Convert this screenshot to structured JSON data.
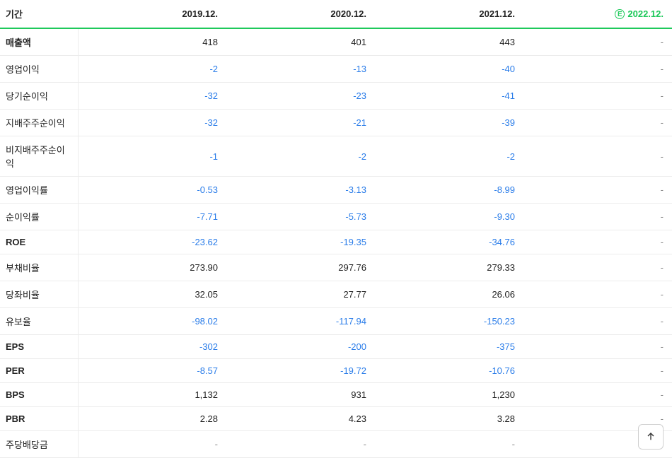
{
  "header": {
    "period_label": "기간",
    "periods": [
      "2019.12.",
      "2020.12.",
      "2021.12.",
      "2022.12."
    ],
    "estimate_index": 3,
    "estimate_badge": "E",
    "accent_color": "#1ec95b",
    "negative_color": "#2b7de9",
    "text_color": "#222222",
    "border_color": "#ececec"
  },
  "rows": [
    {
      "label": "매출액",
      "bold": true,
      "vals": [
        "418",
        "401",
        "443",
        "-"
      ],
      "neg": [
        false,
        false,
        false,
        false
      ]
    },
    {
      "label": "영업이익",
      "bold": false,
      "vals": [
        "-2",
        "-13",
        "-40",
        "-"
      ],
      "neg": [
        true,
        true,
        true,
        false
      ]
    },
    {
      "label": "당기순이익",
      "bold": false,
      "vals": [
        "-32",
        "-23",
        "-41",
        "-"
      ],
      "neg": [
        true,
        true,
        true,
        false
      ]
    },
    {
      "label": "지배주주순이익",
      "bold": false,
      "vals": [
        "-32",
        "-21",
        "-39",
        "-"
      ],
      "neg": [
        true,
        true,
        true,
        false
      ]
    },
    {
      "label": "비지배주주순이익",
      "bold": false,
      "vals": [
        "-1",
        "-2",
        "-2",
        "-"
      ],
      "neg": [
        true,
        true,
        true,
        false
      ]
    },
    {
      "label": "영업이익률",
      "bold": false,
      "vals": [
        "-0.53",
        "-3.13",
        "-8.99",
        "-"
      ],
      "neg": [
        true,
        true,
        true,
        false
      ]
    },
    {
      "label": "순이익률",
      "bold": false,
      "vals": [
        "-7.71",
        "-5.73",
        "-9.30",
        "-"
      ],
      "neg": [
        true,
        true,
        true,
        false
      ]
    },
    {
      "label": "ROE",
      "bold": true,
      "vals": [
        "-23.62",
        "-19.35",
        "-34.76",
        "-"
      ],
      "neg": [
        true,
        true,
        true,
        false
      ]
    },
    {
      "label": "부채비율",
      "bold": false,
      "vals": [
        "273.90",
        "297.76",
        "279.33",
        "-"
      ],
      "neg": [
        false,
        false,
        false,
        false
      ]
    },
    {
      "label": "당좌비율",
      "bold": false,
      "vals": [
        "32.05",
        "27.77",
        "26.06",
        "-"
      ],
      "neg": [
        false,
        false,
        false,
        false
      ]
    },
    {
      "label": "유보율",
      "bold": false,
      "vals": [
        "-98.02",
        "-117.94",
        "-150.23",
        "-"
      ],
      "neg": [
        true,
        true,
        true,
        false
      ]
    },
    {
      "label": "EPS",
      "bold": true,
      "vals": [
        "-302",
        "-200",
        "-375",
        "-"
      ],
      "neg": [
        true,
        true,
        true,
        false
      ]
    },
    {
      "label": "PER",
      "bold": true,
      "vals": [
        "-8.57",
        "-19.72",
        "-10.76",
        "-"
      ],
      "neg": [
        true,
        true,
        true,
        false
      ]
    },
    {
      "label": "BPS",
      "bold": true,
      "vals": [
        "1,132",
        "931",
        "1,230",
        "-"
      ],
      "neg": [
        false,
        false,
        false,
        false
      ]
    },
    {
      "label": "PBR",
      "bold": true,
      "vals": [
        "2.28",
        "4.23",
        "3.28",
        "-"
      ],
      "neg": [
        false,
        false,
        false,
        false
      ]
    },
    {
      "label": "주당배당금",
      "bold": false,
      "vals": [
        "-",
        "-",
        "-",
        "-"
      ],
      "neg": [
        false,
        false,
        false,
        false
      ]
    }
  ]
}
